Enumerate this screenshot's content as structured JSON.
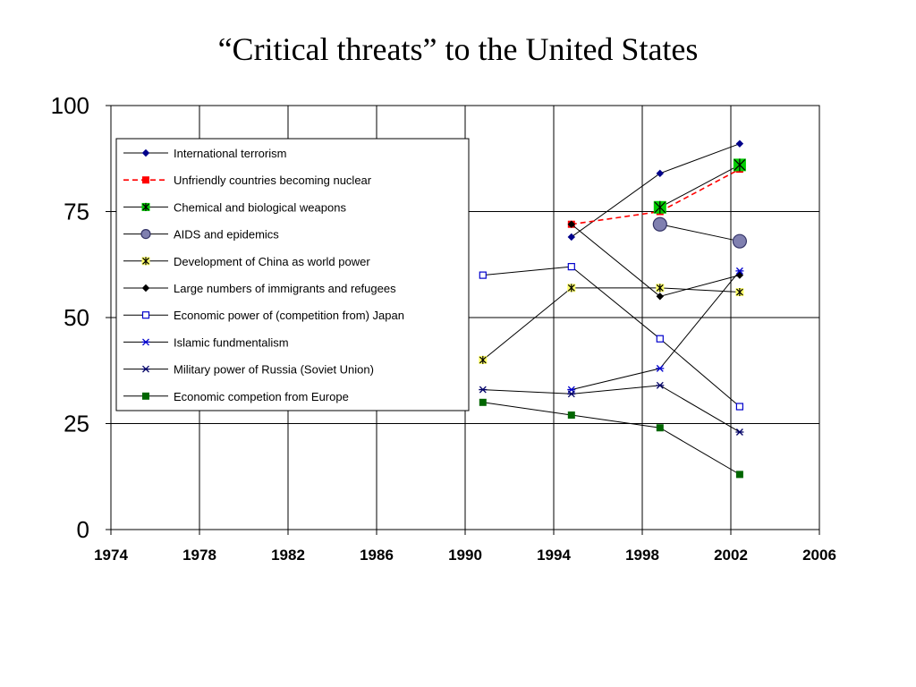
{
  "slide": {
    "title": "“Critical threats” to the United States"
  },
  "chart_data": {
    "type": "line",
    "title": "“Critical threats” to the United States",
    "xlabel": "",
    "ylabel": "",
    "xlim": [
      1974,
      2006
    ],
    "ylim": [
      0,
      100
    ],
    "xticks": [
      1974,
      1978,
      1982,
      1986,
      1990,
      1994,
      1998,
      2002,
      2006
    ],
    "yticks": [
      0,
      25,
      50,
      75,
      100
    ],
    "grid": true,
    "legend_placement": "top-left",
    "series": [
      {
        "name": "International terrorism",
        "x": [
          1994.8,
          1998.8,
          2002.4
        ],
        "values": [
          69,
          84,
          91
        ],
        "color": "#00008B",
        "marker": "diamond",
        "dash": false
      },
      {
        "name": "Unfriendly countries becoming nuclear",
        "x": [
          1994.8,
          1998.8,
          2002.4
        ],
        "values": [
          72,
          75,
          85
        ],
        "color": "#FF0000",
        "marker": "square",
        "dash": true
      },
      {
        "name": "Chemical and biological weapons",
        "x": [
          1998.8,
          2002.4
        ],
        "values": [
          76,
          86
        ],
        "color": "#00CC00",
        "marker": "star-box",
        "dash": false
      },
      {
        "name": "AIDS and epidemics",
        "x": [
          1998.8,
          2002.4
        ],
        "values": [
          72,
          68
        ],
        "color": "#8080B0",
        "marker": "circle",
        "dash": false
      },
      {
        "name": "Development of China as world power",
        "x": [
          1990.8,
          1994.8,
          1998.8,
          2002.4
        ],
        "values": [
          40,
          57,
          57,
          56
        ],
        "color": "#FFFF66",
        "marker": "star-box",
        "dash": false
      },
      {
        "name": "Large numbers of immigrants and refugees",
        "x": [
          1994.8,
          1998.8,
          2002.4
        ],
        "values": [
          72,
          55,
          60
        ],
        "color": "#000000",
        "marker": "diamond",
        "dash": false
      },
      {
        "name": "Economic power of (competition from) Japan",
        "x": [
          1990.8,
          1994.8,
          1998.8,
          2002.4
        ],
        "values": [
          60,
          62,
          45,
          29
        ],
        "color": "#0000CC",
        "marker": "open-square",
        "dash": false
      },
      {
        "name": "Islamic fundmentalism",
        "x": [
          1994.8,
          1998.8,
          2002.4
        ],
        "values": [
          33,
          38,
          61
        ],
        "color": "#0000CC",
        "marker": "star",
        "dash": false
      },
      {
        "name": "Military power of Russia (Soviet Union)",
        "x": [
          1990.8,
          1994.8,
          1998.8,
          2002.4
        ],
        "values": [
          33,
          32,
          34,
          23
        ],
        "color": "#000066",
        "marker": "star",
        "dash": false
      },
      {
        "name": "Economic competion from Europe",
        "x": [
          1990.8,
          1994.8,
          1998.8,
          2002.4
        ],
        "values": [
          30,
          27,
          24,
          13
        ],
        "color": "#006600",
        "marker": "square",
        "dash": false
      }
    ]
  }
}
